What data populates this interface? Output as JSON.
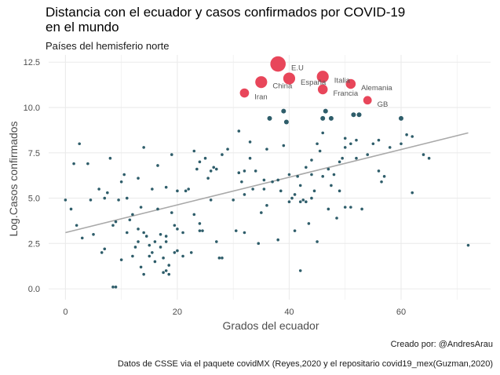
{
  "chart_data": {
    "type": "scatter",
    "title_line1": "Distancia con el ecuador y casos confirmados por COVID-19",
    "title_line2": "en el mundo",
    "subtitle": "Países del hemisferio norte",
    "xlabel": "Grados del ecuador",
    "ylabel": "Log.Casos confirmados",
    "caption1": "Creado por: @AndresArau",
    "caption2": "Datos de CSSE via el paquete covidMX (Reyes,2020 y el repositario covid19_mex(Guzman,2020)",
    "xlim": [
      -3,
      76
    ],
    "ylim": [
      -0.6,
      12.9
    ],
    "x_ticks": [
      0,
      20,
      40,
      60
    ],
    "x_tick_labels": [
      "0",
      "20",
      "40",
      "60"
    ],
    "y_ticks": [
      0,
      2.5,
      5,
      7.5,
      10,
      12.5
    ],
    "y_tick_labels": [
      "0.0",
      "2.5",
      "5.0",
      "7.5",
      "10.0",
      "12.5"
    ],
    "grid": true,
    "colors": {
      "point": "#2e5d6a",
      "highlight": "#e8465a",
      "trend": "#a9a9a9",
      "grid": "#ebebeb",
      "text": "#4d4d4d"
    },
    "trend_line": {
      "x": [
        0,
        72
      ],
      "y": [
        3.1,
        8.6
      ]
    },
    "highlighted": [
      {
        "label": "E.U",
        "x": 38,
        "y": 12.4,
        "size": 3
      },
      {
        "label": "China",
        "x": 35,
        "y": 11.4,
        "size": 2
      },
      {
        "label": "España",
        "x": 40,
        "y": 11.6,
        "size": 2
      },
      {
        "label": "Italia",
        "x": 46,
        "y": 11.7,
        "size": 2
      },
      {
        "label": "Alemania",
        "x": 51,
        "y": 11.3,
        "size": 1.4
      },
      {
        "label": "Francia",
        "x": 46,
        "y": 11.0,
        "size": 1.4
      },
      {
        "label": "Iran",
        "x": 32,
        "y": 10.8,
        "size": 1.2
      },
      {
        "label": "GB",
        "x": 54,
        "y": 10.4,
        "size": 1
      }
    ],
    "points": [
      [
        0,
        4.9
      ],
      [
        1,
        4.4
      ],
      [
        1.5,
        6.9
      ],
      [
        2,
        3.5
      ],
      [
        2.5,
        8.0
      ],
      [
        3,
        2.8
      ],
      [
        4,
        6.9
      ],
      [
        4.5,
        4.9
      ],
      [
        5,
        3.0
      ],
      [
        6,
        5.5
      ],
      [
        6.5,
        2.0
      ],
      [
        7,
        5.0
      ],
      [
        7,
        2.2
      ],
      [
        7.5,
        5.3
      ],
      [
        8,
        7.2
      ],
      [
        8.5,
        3.5
      ],
      [
        9,
        3.7
      ],
      [
        9,
        0.1
      ],
      [
        8.5,
        0.1
      ],
      [
        9.5,
        4.9
      ],
      [
        10,
        1.6
      ],
      [
        10,
        5.9
      ],
      [
        10.5,
        6.3
      ],
      [
        11,
        3.1
      ],
      [
        11,
        5.0
      ],
      [
        11.5,
        3.8
      ],
      [
        12,
        4.1
      ],
      [
        12,
        1.8
      ],
      [
        12.5,
        2.3
      ],
      [
        13,
        2.6
      ],
      [
        13,
        6.1
      ],
      [
        13,
        3.3
      ],
      [
        13.5,
        4.5
      ],
      [
        13.5,
        1.2
      ],
      [
        14,
        0.8
      ],
      [
        14,
        7.8
      ],
      [
        14,
        3.1
      ],
      [
        14.5,
        2.9
      ],
      [
        15,
        2.4
      ],
      [
        15,
        1.8
      ],
      [
        15.5,
        2.0
      ],
      [
        15.5,
        5.5
      ],
      [
        16,
        2.6
      ],
      [
        16,
        1.5
      ],
      [
        16.5,
        4.4
      ],
      [
        16.5,
        6.8
      ],
      [
        17,
        2.3
      ],
      [
        17,
        3.0
      ],
      [
        17.5,
        0.9
      ],
      [
        17.5,
        1.7
      ],
      [
        18,
        1.0
      ],
      [
        18,
        2.6
      ],
      [
        18,
        5.6
      ],
      [
        18.5,
        1.3
      ],
      [
        18.5,
        0.8
      ],
      [
        19,
        4.2
      ],
      [
        19,
        7.4
      ],
      [
        19.5,
        3.5
      ],
      [
        19.5,
        2.0
      ],
      [
        20,
        2.1
      ],
      [
        20,
        5.4
      ],
      [
        21,
        1.8
      ],
      [
        21,
        3.1
      ],
      [
        21.5,
        5.4
      ],
      [
        22,
        5.5
      ],
      [
        22.5,
        2.0
      ],
      [
        23,
        7.6
      ],
      [
        23,
        4.1
      ],
      [
        23.5,
        6.6
      ],
      [
        24,
        7.0
      ],
      [
        24,
        3.2
      ],
      [
        24.5,
        3.2
      ],
      [
        25,
        7.2
      ],
      [
        25.5,
        6.1
      ],
      [
        26,
        6.5
      ],
      [
        26,
        4.9
      ],
      [
        26.5,
        6.7
      ],
      [
        27,
        6.6
      ],
      [
        27,
        2.6
      ],
      [
        27.5,
        1.7
      ],
      [
        28,
        7.4
      ],
      [
        28,
        1.7
      ],
      [
        29,
        7.7
      ],
      [
        30,
        4.9
      ],
      [
        30.5,
        3.2
      ],
      [
        31,
        8.7
      ],
      [
        31,
        6.4
      ],
      [
        31.5,
        5.9
      ],
      [
        32,
        3.1
      ],
      [
        32,
        6.5
      ],
      [
        33,
        8.1
      ],
      [
        33,
        7.2
      ],
      [
        33.5,
        5.5
      ],
      [
        34,
        6.5
      ],
      [
        34.5,
        2.5
      ],
      [
        35,
        4.2
      ],
      [
        35.5,
        6.0
      ],
      [
        35.5,
        5.5
      ],
      [
        36,
        7.7
      ],
      [
        36.5,
        9.4
      ],
      [
        37,
        5.9
      ],
      [
        38,
        6.0
      ],
      [
        38,
        2.7
      ],
      [
        38.5,
        5.4
      ],
      [
        39,
        9.8
      ],
      [
        39,
        7.9
      ],
      [
        39.5,
        9.2
      ],
      [
        40,
        6.3
      ],
      [
        40,
        4.8
      ],
      [
        40.5,
        5.0
      ],
      [
        41,
        5.2
      ],
      [
        41,
        3.2
      ],
      [
        41.5,
        6.2
      ],
      [
        42,
        5.7
      ],
      [
        42,
        4.8
      ],
      [
        42,
        1.0
      ],
      [
        42.5,
        4.9
      ],
      [
        43,
        4.8
      ],
      [
        43,
        6.7
      ],
      [
        43.5,
        3.6
      ],
      [
        44,
        7.1
      ],
      [
        44,
        6.3
      ],
      [
        44,
        5.0
      ],
      [
        44.5,
        5.4
      ],
      [
        45,
        8.0
      ],
      [
        45,
        2.6
      ],
      [
        45.5,
        7.6
      ],
      [
        46,
        6.2
      ],
      [
        46,
        8.6
      ],
      [
        46,
        9.4
      ],
      [
        46.5,
        9.8
      ],
      [
        47,
        4.4
      ],
      [
        47,
        6.6
      ],
      [
        47.5,
        9.4
      ],
      [
        47.5,
        5.7
      ],
      [
        48,
        6.3
      ],
      [
        48.5,
        3.9
      ],
      [
        49,
        7.0
      ],
      [
        49,
        5.4
      ],
      [
        49.5,
        7.2
      ],
      [
        50,
        7.8
      ],
      [
        50,
        8.3
      ],
      [
        50,
        4.5
      ],
      [
        51,
        8.0
      ],
      [
        51,
        4.5
      ],
      [
        51.5,
        9.6
      ],
      [
        52,
        8.2
      ],
      [
        52,
        7.2
      ],
      [
        52.5,
        9.6
      ],
      [
        53,
        4.4
      ],
      [
        54,
        7.4
      ],
      [
        55,
        8.0
      ],
      [
        56,
        8.2
      ],
      [
        56,
        6.5
      ],
      [
        56.5,
        5.9
      ],
      [
        57,
        6.2
      ],
      [
        58,
        7.8
      ],
      [
        60,
        9.4
      ],
      [
        60,
        8.0
      ],
      [
        61,
        8.5
      ],
      [
        62,
        8.4
      ],
      [
        62,
        5.3
      ],
      [
        64,
        7.4
      ],
      [
        65,
        7.2
      ],
      [
        72,
        2.4
      ],
      [
        18,
        2.9
      ],
      [
        20,
        3.3
      ],
      [
        24,
        3.6
      ],
      [
        32,
        5.2
      ],
      [
        36,
        4.6
      ]
    ]
  }
}
